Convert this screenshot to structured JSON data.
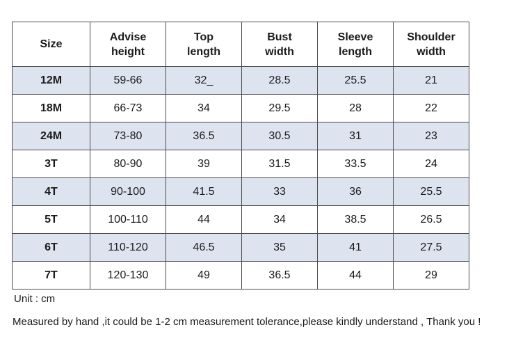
{
  "table": {
    "headers": [
      [
        "Size"
      ],
      [
        "Advise",
        "height"
      ],
      [
        "Top",
        "length"
      ],
      [
        "Bust",
        "width"
      ],
      [
        "Sleeve",
        "length"
      ],
      [
        "Shoulder",
        "width"
      ]
    ],
    "rows": [
      [
        "12M",
        "59-66",
        "32_",
        "28.5",
        "25.5",
        "21"
      ],
      [
        "18M",
        "66-73",
        "34",
        "29.5",
        "28",
        "22"
      ],
      [
        "24M",
        "73-80",
        "36.5",
        "30.5",
        "31",
        "23"
      ],
      [
        "3T",
        "80-90",
        "39",
        "31.5",
        "33.5",
        "24"
      ],
      [
        "4T",
        "90-100",
        "41.5",
        "33",
        "36",
        "25.5"
      ],
      [
        "5T",
        "100-110",
        "44",
        "34",
        "38.5",
        "26.5"
      ],
      [
        "6T",
        "110-120",
        "46.5",
        "35",
        "41",
        "27.5"
      ],
      [
        "7T",
        "120-130",
        "49",
        "36.5",
        "44",
        "29"
      ]
    ],
    "shaded_row_color": "#dde4ef"
  },
  "notes": {
    "unit": "Unit : cm",
    "tolerance": "Measured by hand ,it could be 1-2 cm measurement tolerance,please kindly understand , Thank you !"
  }
}
